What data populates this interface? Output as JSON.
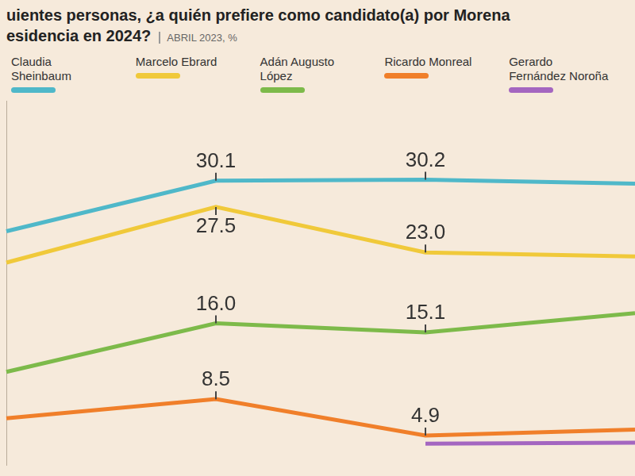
{
  "chart_data": {
    "type": "line",
    "title": [
      "uientes personas, ¿a quién prefiere como candidato(a) por Morena",
      "esidencia en 2024?"
    ],
    "subtitle": "ABRIL 2023, %",
    "categories": [
      null,
      null,
      null,
      null
    ],
    "series": [
      {
        "name": "Claudia Sheinbaum",
        "color": "#4fb8c9",
        "values": [
          25.1,
          30.1,
          30.2,
          29.8
        ],
        "value_labels": [
          null,
          "30.1",
          "30.2",
          null
        ]
      },
      {
        "name": "Marcelo Ebrard",
        "color": "#f0c93a",
        "values": [
          22.0,
          27.5,
          23.0,
          22.6
        ],
        "value_labels": [
          null,
          "27.5",
          "23.0",
          null
        ]
      },
      {
        "name": "Adán Augusto López",
        "color": "#7dba4a",
        "values": [
          11.2,
          16.0,
          15.1,
          17.0
        ],
        "value_labels": [
          null,
          "16.0",
          "15.1",
          null
        ]
      },
      {
        "name": "Ricardo Monreal",
        "color": "#f07f2a",
        "values": [
          6.6,
          8.5,
          4.9,
          5.5
        ],
        "value_labels": [
          null,
          "8.5",
          "4.9",
          null
        ]
      },
      {
        "name": "Gerardo Fernández Noroña",
        "color": "#a466c0",
        "values": [
          null,
          null,
          4.1,
          4.2
        ],
        "value_labels": [
          null,
          null,
          null,
          null
        ]
      }
    ],
    "ylim": [
      2,
      38
    ],
    "grid": false,
    "legend": "top",
    "data_labels": true,
    "tick_labels": false
  }
}
